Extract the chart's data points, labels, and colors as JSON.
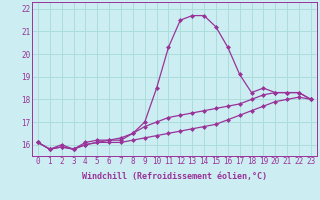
{
  "xlabel": "Windchill (Refroidissement éolien,°C)",
  "bg_color": "#cceef2",
  "grid_color": "#aadddd",
  "line_color": "#993399",
  "hours": [
    0,
    1,
    2,
    3,
    4,
    5,
    6,
    7,
    8,
    9,
    10,
    11,
    12,
    13,
    14,
    15,
    16,
    17,
    18,
    19,
    20,
    21,
    22,
    23
  ],
  "line1": [
    16.1,
    15.8,
    16.0,
    15.8,
    16.1,
    16.2,
    16.2,
    16.2,
    16.5,
    17.0,
    18.5,
    20.3,
    21.5,
    21.7,
    21.7,
    21.2,
    20.3,
    19.1,
    18.3,
    18.5,
    18.3,
    18.3,
    18.3,
    18.0
  ],
  "line2": [
    16.1,
    15.8,
    15.9,
    15.8,
    16.0,
    16.1,
    16.2,
    16.3,
    16.5,
    16.8,
    17.0,
    17.2,
    17.3,
    17.4,
    17.5,
    17.6,
    17.7,
    17.8,
    18.0,
    18.2,
    18.3,
    18.3,
    18.3,
    18.0
  ],
  "line3": [
    16.1,
    15.8,
    15.9,
    15.8,
    16.0,
    16.1,
    16.1,
    16.1,
    16.2,
    16.3,
    16.4,
    16.5,
    16.6,
    16.7,
    16.8,
    16.9,
    17.1,
    17.3,
    17.5,
    17.7,
    17.9,
    18.0,
    18.1,
    18.0
  ],
  "ylim": [
    15.5,
    22.3
  ],
  "yticks": [
    16,
    17,
    18,
    19,
    20,
    21,
    22
  ],
  "xticks": [
    0,
    1,
    2,
    3,
    4,
    5,
    6,
    7,
    8,
    9,
    10,
    11,
    12,
    13,
    14,
    15,
    16,
    17,
    18,
    19,
    20,
    21,
    22,
    23
  ],
  "markersize": 2.0,
  "linewidth": 0.9,
  "fontsize_tick": 5.5,
  "fontsize_label": 6.0
}
